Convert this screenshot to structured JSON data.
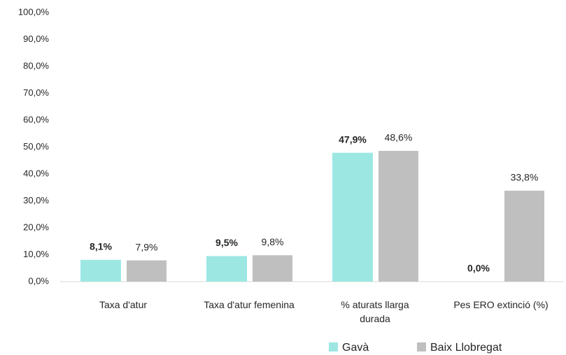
{
  "chart_data": {
    "type": "bar",
    "categories": [
      "Taxa d'atur",
      "Taxa d'atur femenina",
      "% aturats llarga durada",
      "Pes ERO extinció (%)"
    ],
    "series": [
      {
        "name": "Gavà",
        "color": "#9de7e3",
        "values": [
          8.1,
          9.5,
          47.9,
          0.0
        ],
        "value_labels": [
          "8,1%",
          "9,5%",
          "47,9%",
          "0,0%"
        ]
      },
      {
        "name": "Baix Llobregat",
        "color": "#bfbfbf",
        "values": [
          7.9,
          9.8,
          48.6,
          33.8
        ],
        "value_labels": [
          "7,9%",
          "9,8%",
          "48,6%",
          "33,8%"
        ]
      }
    ],
    "ylim": [
      0,
      100
    ],
    "yticks": [
      {
        "value": 0,
        "label": "0,0%"
      },
      {
        "value": 10,
        "label": "10,0%"
      },
      {
        "value": 20,
        "label": "20,0%"
      },
      {
        "value": 30,
        "label": "30,0%"
      },
      {
        "value": 40,
        "label": "40,0%"
      },
      {
        "value": 50,
        "label": "50,0%"
      },
      {
        "value": 60,
        "label": "60,0%"
      },
      {
        "value": 70,
        "label": "70,0%"
      },
      {
        "value": 80,
        "label": "80,0%"
      },
      {
        "value": 90,
        "label": "90,0%"
      },
      {
        "value": 100,
        "label": "100,0%"
      }
    ],
    "grid": false,
    "legend": "bottom"
  }
}
